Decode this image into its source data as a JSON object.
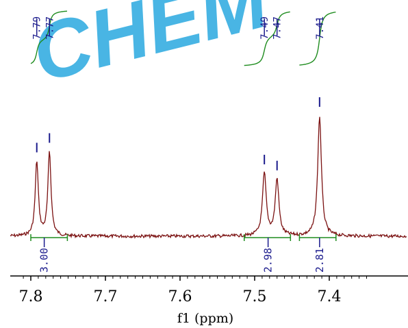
{
  "watermark": "CHEM",
  "chart_data": {
    "type": "line",
    "title": "",
    "xlabel": "f1 (ppm)",
    "ylabel": "",
    "xlim": [
      7.8,
      7.36
    ],
    "x_reversed": true,
    "ticks": [
      7.8,
      7.7,
      7.6,
      7.5,
      7.4
    ],
    "tick_labels": [
      "7.8",
      "7.7",
      "7.6",
      "7.5",
      "7.4"
    ],
    "colors": {
      "spectrum": "#7a1010",
      "integral": "#1e8c1e",
      "labels": "#1a1a8c"
    },
    "peaks": [
      {
        "ppm": 7.792,
        "height": 0.62,
        "width": 0.0025
      },
      {
        "ppm": 7.775,
        "height": 0.7,
        "width": 0.0025
      },
      {
        "ppm": 7.487,
        "height": 0.52,
        "width": 0.003
      },
      {
        "ppm": 7.47,
        "height": 0.47,
        "width": 0.003
      },
      {
        "ppm": 7.413,
        "height": 1.0,
        "width": 0.003
      }
    ],
    "peak_labels": [
      {
        "ppm": 7.792,
        "text": "7.79"
      },
      {
        "ppm": 7.775,
        "text": "7.77"
      },
      {
        "ppm": 7.487,
        "text": "7.49"
      },
      {
        "ppm": 7.47,
        "text": "7.47"
      },
      {
        "ppm": 7.413,
        "text": "7.41"
      }
    ],
    "integrals": [
      {
        "from": 7.8,
        "to": 7.751,
        "value": "3.00",
        "label_ppm": 7.782
      },
      {
        "from": 7.514,
        "to": 7.452,
        "value": "2.98",
        "label_ppm": 7.482
      },
      {
        "from": 7.44,
        "to": 7.391,
        "value": "2.81",
        "label_ppm": 7.413
      }
    ]
  }
}
